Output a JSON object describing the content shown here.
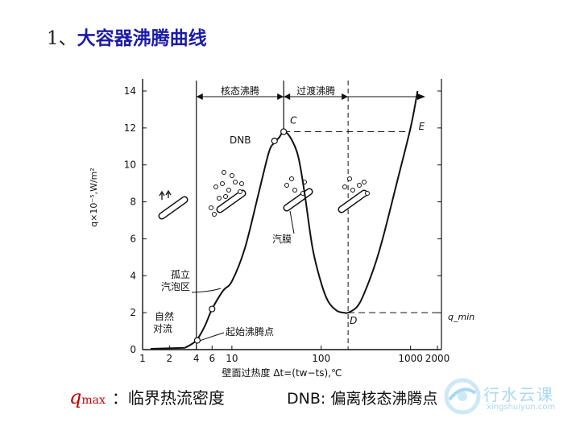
{
  "title": {
    "number": "1、",
    "text": "大容器沸腾曲线"
  },
  "chart_data": {
    "type": "line",
    "xlabel": "壁面过热度 Δt=(tw−ts),℃",
    "ylabel": "q×10⁻⁵,W/m²",
    "x_scale": "log",
    "x_ticks": [
      "1",
      "2",
      "4",
      "6",
      "10",
      "100",
      "1000",
      "2000"
    ],
    "y_ticks": [
      "0",
      "2",
      "4",
      "6",
      "8",
      "10",
      "12",
      "14"
    ],
    "ylim": [
      0,
      14
    ],
    "regions": [
      "核态沸腾",
      "过渡沸腾"
    ],
    "points": [
      {
        "label": "C",
        "x": 38,
        "y": 11.8
      },
      {
        "label": "D",
        "x": 200,
        "y": 2.0
      },
      {
        "label": "E",
        "x": 1000,
        "y": 12.0
      }
    ],
    "annotations": [
      "DNB",
      "孤立汽泡区",
      "自然对流",
      "起始沸腾点",
      "汽膜",
      "q_min"
    ],
    "series": [
      {
        "x": [
          3,
          4,
          5,
          6,
          8,
          10,
          14,
          20,
          26,
          30,
          34,
          38,
          45,
          55,
          65,
          80,
          100,
          120,
          150,
          180,
          200,
          250,
          300,
          400,
          500,
          700,
          1000,
          1200
        ],
        "y": [
          0.1,
          0.5,
          1.3,
          2.2,
          3.2,
          3.7,
          5.5,
          8.5,
          10.7,
          11.2,
          11.5,
          11.8,
          11.5,
          10.5,
          8.5,
          5.5,
          3.6,
          2.6,
          2.1,
          2.0,
          2.0,
          2.3,
          3.0,
          4.6,
          6.2,
          9.0,
          12.0,
          14.0
        ]
      }
    ]
  },
  "captions": {
    "qmax_symbol": "q",
    "qmax_sub": "max",
    "qmax_def": "：临界热流密度",
    "dnb_def": "DNB: 偏离核态沸腾点"
  },
  "watermark": {
    "cn": "行水云课",
    "en": "xingshuiyun.com"
  }
}
